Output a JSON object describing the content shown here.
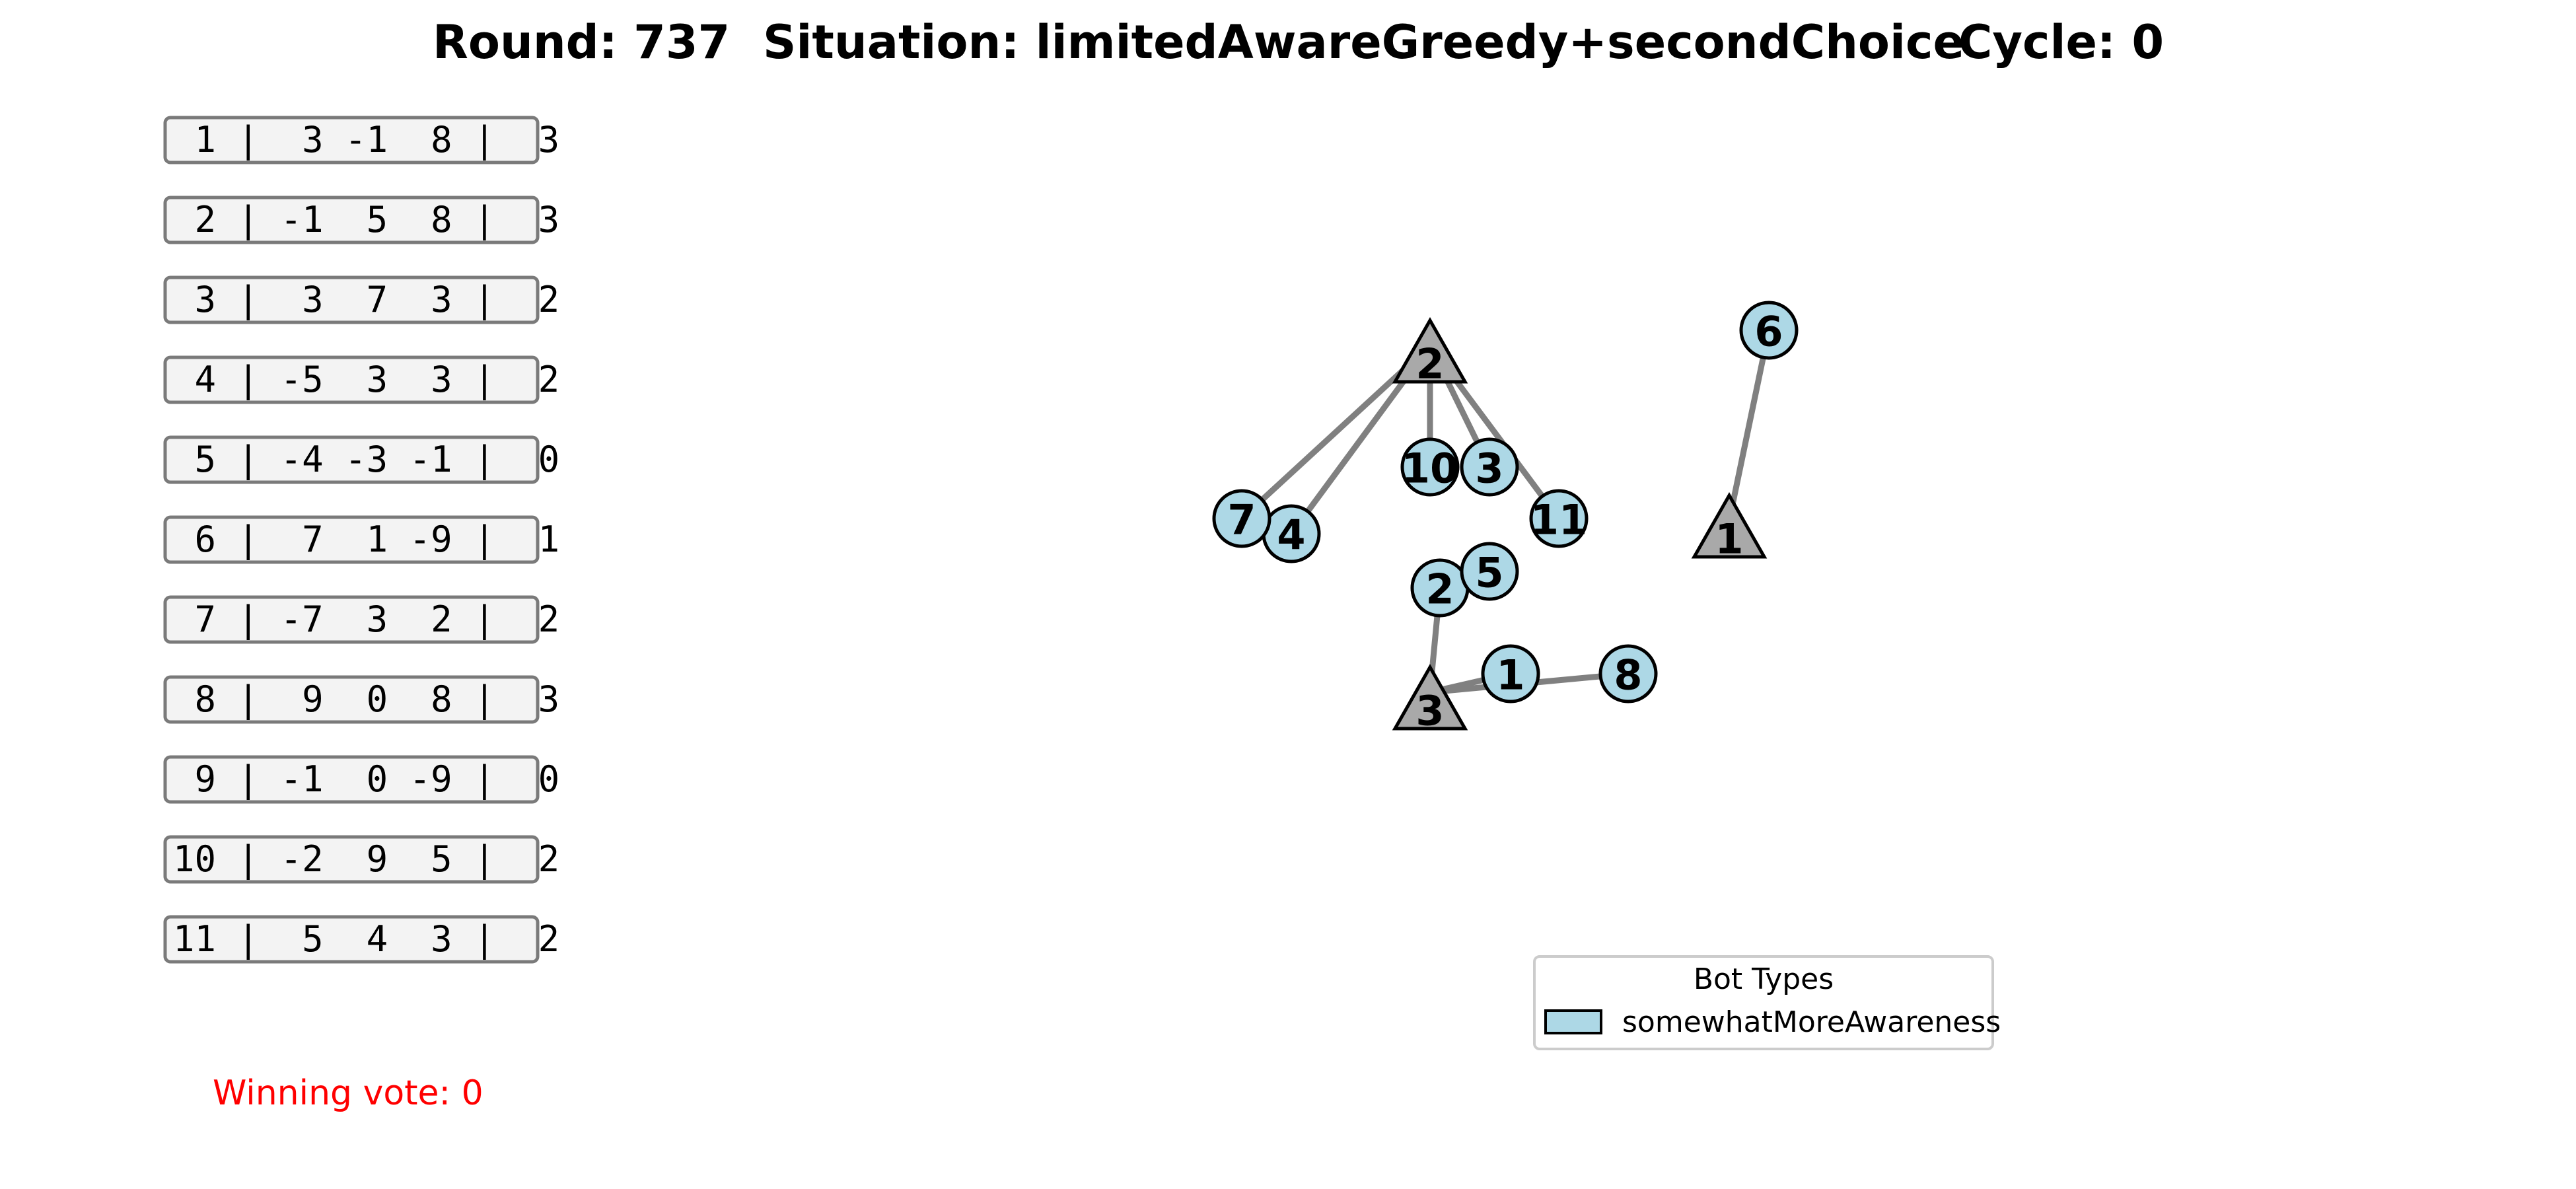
{
  "header": {
    "round": "Round: 737",
    "situation": "Situation: limitedAwareGreedy+secondChoice",
    "cycle": "Cycle: 0"
  },
  "score_table": [
    " 1 |  3 -1  8 |  3",
    " 2 | -1  5  8 |  3",
    " 3 |  3  7  3 |  2",
    " 4 | -5  3  3 |  2",
    " 5 | -4 -3 -1 |  0",
    " 6 |  7  1 -9 |  1",
    " 7 | -7  3  2 |  2",
    " 8 |  9  0  8 |  3",
    " 9 | -1  0 -9 |  0",
    "10 | -2  9  5 |  2",
    "11 |  5  4  3 |  2"
  ],
  "winning_vote": "Winning vote: 0",
  "colors": {
    "bot_fill": "#add8e6",
    "option_fill": "#a9a9a9",
    "edge": "#808080",
    "winning_vote_text": "#ff0000"
  },
  "options": [
    {
      "id": "opt-1",
      "label": "1"
    },
    {
      "id": "opt-2",
      "label": "2"
    },
    {
      "id": "opt-3",
      "label": "3"
    }
  ],
  "bots": [
    {
      "id": "bot-1",
      "label": "1",
      "choice": "opt-3"
    },
    {
      "id": "bot-2",
      "label": "2",
      "choice": "opt-3"
    },
    {
      "id": "bot-3",
      "label": "3",
      "choice": "opt-2"
    },
    {
      "id": "bot-4",
      "label": "4",
      "choice": "opt-2"
    },
    {
      "id": "bot-5",
      "label": "5",
      "choice": null
    },
    {
      "id": "bot-6",
      "label": "6",
      "choice": "opt-1"
    },
    {
      "id": "bot-7",
      "label": "7",
      "choice": "opt-2"
    },
    {
      "id": "bot-8",
      "label": "8",
      "choice": "opt-3"
    },
    {
      "id": "bot-10",
      "label": "10",
      "choice": "opt-2"
    },
    {
      "id": "bot-11",
      "label": "11",
      "choice": "opt-2"
    }
  ],
  "legend": {
    "title": "Bot Types",
    "entries": [
      "somewhatMoreAwareness"
    ]
  }
}
